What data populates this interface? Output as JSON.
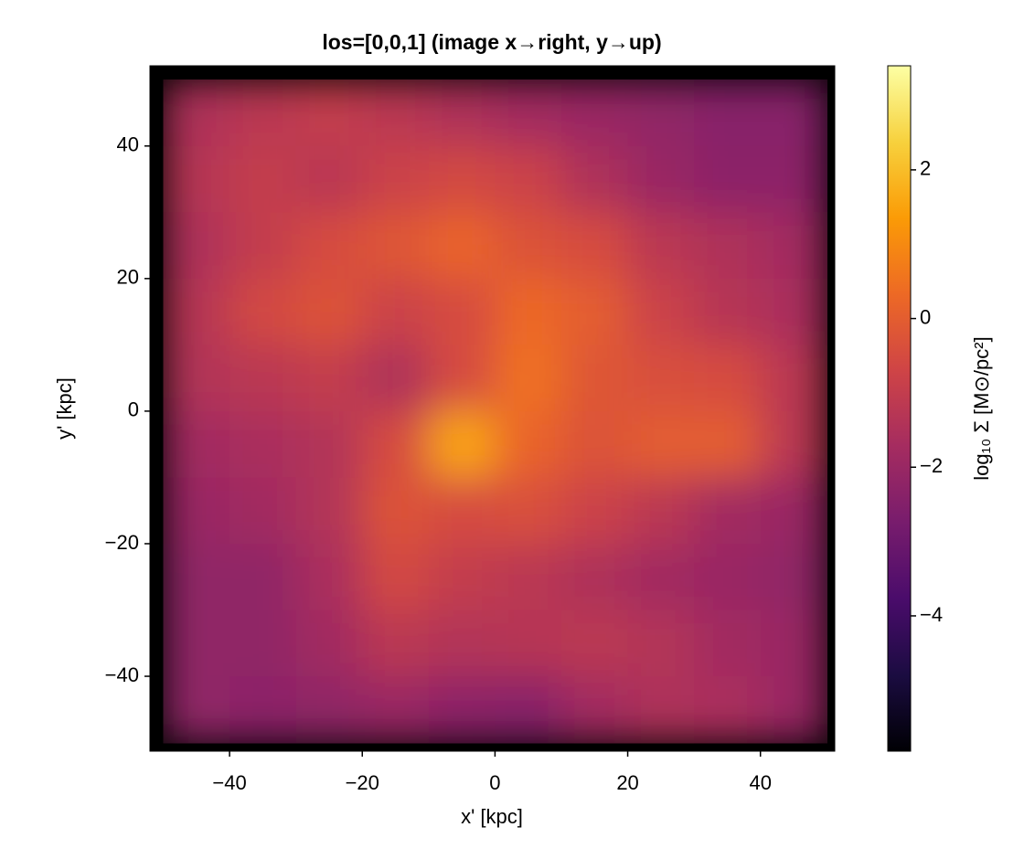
{
  "chart_data": {
    "type": "heatmap",
    "title": "los=[0,0,1]  (image x→right, y→up)",
    "x_label": "x' [kpc]",
    "y_label": "y' [kpc]",
    "colorbar_label": "log₁₀ Σ [M⊙/pc²]",
    "colormap": "inferno",
    "x_edges": [
      -50,
      -40,
      -30,
      -20,
      -10,
      0,
      10,
      20,
      30,
      40,
      50
    ],
    "y_edges": [
      50,
      40,
      30,
      20,
      10,
      0,
      -10,
      -20,
      -30,
      -40,
      -50
    ],
    "values": [
      [
        -1.5,
        -1.2,
        -1.0,
        -1.2,
        -1.5,
        -1.8,
        -2.0,
        -2.2,
        -2.4,
        -2.4
      ],
      [
        -1.3,
        -1.0,
        -1.2,
        -0.8,
        -0.6,
        -0.8,
        -1.5,
        -2.0,
        -2.3,
        -2.3
      ],
      [
        -1.5,
        -1.0,
        -0.5,
        -0.2,
        0.2,
        -0.3,
        -0.5,
        -1.2,
        -1.5,
        -1.8
      ],
      [
        -1.3,
        -0.6,
        -0.3,
        -0.8,
        -0.5,
        0.3,
        0.0,
        -0.8,
        -1.3,
        -1.6
      ],
      [
        -1.4,
        -1.2,
        -1.0,
        -1.5,
        -0.5,
        0.5,
        -0.2,
        -0.4,
        -0.5,
        -1.2
      ],
      [
        -1.8,
        -1.6,
        -1.4,
        -0.5,
        1.5,
        0.2,
        -0.3,
        0.0,
        0.0,
        -1.2
      ],
      [
        -2.0,
        -1.8,
        -1.4,
        -0.3,
        -0.5,
        -0.4,
        -0.8,
        -1.2,
        -1.8,
        -2.0
      ],
      [
        -2.2,
        -2.2,
        -1.6,
        -0.6,
        -1.0,
        -1.2,
        -1.5,
        -1.8,
        -2.0,
        -2.2
      ],
      [
        -2.2,
        -2.2,
        -1.8,
        -1.2,
        -1.4,
        -1.3,
        -1.2,
        -1.4,
        -1.8,
        -2.0
      ],
      [
        -2.2,
        -2.3,
        -2.2,
        -2.0,
        -2.3,
        -2.4,
        -1.8,
        -1.5,
        -1.6,
        -2.0
      ]
    ],
    "xlim": [
      -52,
      51.2
    ],
    "ylim": [
      -51.3,
      52.1
    ],
    "clim": [
      -5.82,
      3.4
    ],
    "xticks": [
      {
        "value": -40,
        "label": "−40"
      },
      {
        "value": -20,
        "label": "−20"
      },
      0,
      20,
      40
    ],
    "yticks": [
      {
        "value": -40,
        "label": "−40"
      },
      {
        "value": -20,
        "label": "−20"
      },
      0,
      20,
      40
    ],
    "cticks": [
      {
        "value": -4,
        "label": "−4"
      },
      {
        "value": -2,
        "label": "−2"
      },
      0,
      2
    ]
  }
}
